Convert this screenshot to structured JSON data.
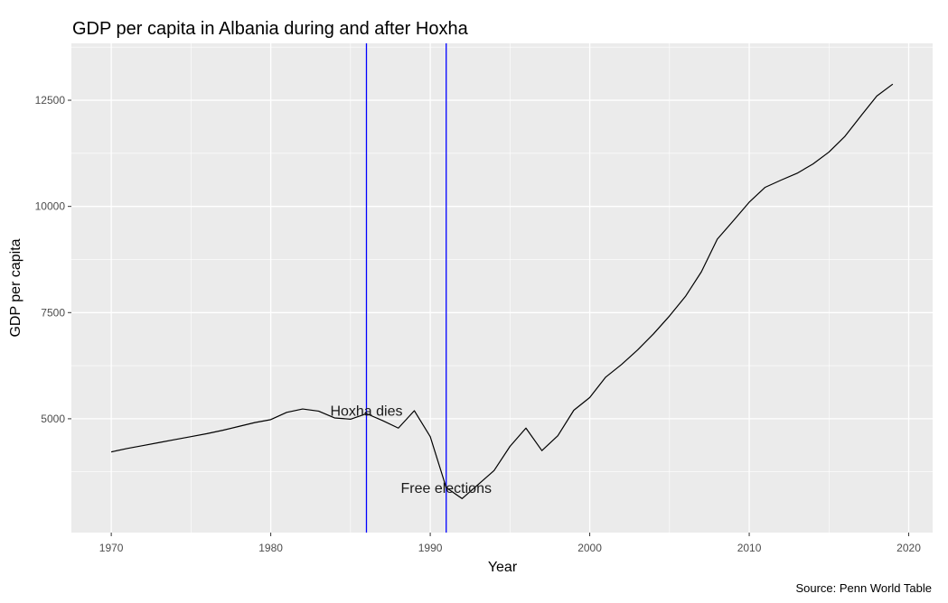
{
  "chart_data": {
    "type": "line",
    "title": "GDP per capita in Albania during and after Hoxha",
    "xlabel": "Year",
    "ylabel": "GDP per capita",
    "caption": "Source: Penn World Table",
    "xlim": [
      1967.5,
      2021.5
    ],
    "ylim": [
      2320,
      13840
    ],
    "x_ticks": [
      1970,
      1980,
      1990,
      2000,
      2010,
      2020
    ],
    "y_ticks": [
      5000,
      7500,
      10000,
      12500
    ],
    "grid": true,
    "panel_background": "#ebebeb",
    "series": [
      {
        "color": "#000000",
        "points": [
          {
            "x": 1970,
            "y": 4220
          },
          {
            "x": 1971,
            "y": 4300
          },
          {
            "x": 1972,
            "y": 4370
          },
          {
            "x": 1973,
            "y": 4440
          },
          {
            "x": 1974,
            "y": 4510
          },
          {
            "x": 1975,
            "y": 4580
          },
          {
            "x": 1976,
            "y": 4650
          },
          {
            "x": 1977,
            "y": 4730
          },
          {
            "x": 1978,
            "y": 4820
          },
          {
            "x": 1979,
            "y": 4910
          },
          {
            "x": 1980,
            "y": 4980
          },
          {
            "x": 1981,
            "y": 5150
          },
          {
            "x": 1982,
            "y": 5230
          },
          {
            "x": 1983,
            "y": 5180
          },
          {
            "x": 1984,
            "y": 5020
          },
          {
            "x": 1985,
            "y": 4990
          },
          {
            "x": 1986,
            "y": 5120
          },
          {
            "x": 1987,
            "y": 4960
          },
          {
            "x": 1988,
            "y": 4780
          },
          {
            "x": 1989,
            "y": 5190
          },
          {
            "x": 1990,
            "y": 4580
          },
          {
            "x": 1991,
            "y": 3380
          },
          {
            "x": 1992,
            "y": 3120
          },
          {
            "x": 1993,
            "y": 3450
          },
          {
            "x": 1994,
            "y": 3780
          },
          {
            "x": 1995,
            "y": 4350
          },
          {
            "x": 1996,
            "y": 4780
          },
          {
            "x": 1997,
            "y": 4250
          },
          {
            "x": 1998,
            "y": 4600
          },
          {
            "x": 1999,
            "y": 5200
          },
          {
            "x": 2000,
            "y": 5500
          },
          {
            "x": 2001,
            "y": 5980
          },
          {
            "x": 2002,
            "y": 6280
          },
          {
            "x": 2003,
            "y": 6620
          },
          {
            "x": 2004,
            "y": 7000
          },
          {
            "x": 2005,
            "y": 7420
          },
          {
            "x": 2006,
            "y": 7880
          },
          {
            "x": 2007,
            "y": 8460
          },
          {
            "x": 2008,
            "y": 9230
          },
          {
            "x": 2009,
            "y": 9660
          },
          {
            "x": 2010,
            "y": 10100
          },
          {
            "x": 2011,
            "y": 10450
          },
          {
            "x": 2012,
            "y": 10620
          },
          {
            "x": 2013,
            "y": 10780
          },
          {
            "x": 2014,
            "y": 11000
          },
          {
            "x": 2015,
            "y": 11280
          },
          {
            "x": 2016,
            "y": 11650
          },
          {
            "x": 2017,
            "y": 12130
          },
          {
            "x": 2018,
            "y": 12600
          },
          {
            "x": 2019,
            "y": 12880
          }
        ]
      }
    ],
    "vlines": [
      {
        "x": 1986,
        "color": "#0000ff"
      },
      {
        "x": 1991,
        "color": "#0000ff"
      }
    ],
    "annotations": [
      {
        "text": "Hoxha dies",
        "x": 1986,
        "y": 5200
      },
      {
        "text": "Free elections",
        "x": 1991,
        "y": 3380
      }
    ]
  }
}
